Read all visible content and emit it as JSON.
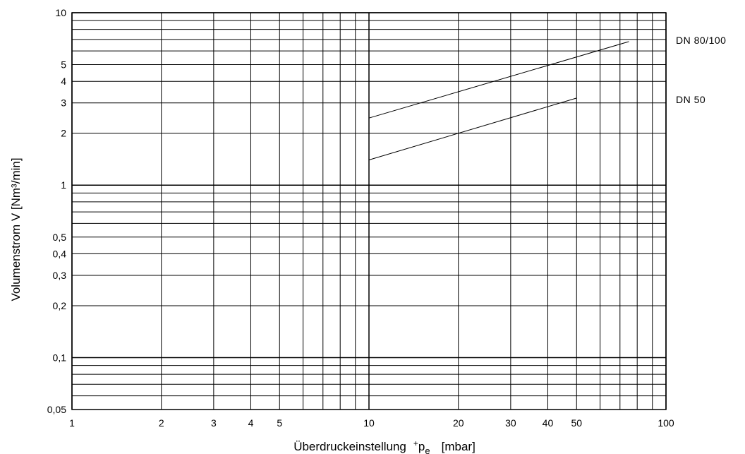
{
  "chart_data": {
    "type": "line",
    "xscale": "log",
    "yscale": "log",
    "xlim": [
      1,
      100
    ],
    "ylim": [
      0.05,
      10
    ],
    "grid": true,
    "xlabel": {
      "main": "Überdruckeinstellung",
      "sup": "+",
      "var": "p",
      "sub": "e",
      "unit": "[mbar]"
    },
    "ylabel": "Volumenstrom  V  [Nm³/min]",
    "x_ticks": [
      {
        "value": 1,
        "label": "1"
      },
      {
        "value": 2,
        "label": "2"
      },
      {
        "value": 3,
        "label": "3"
      },
      {
        "value": 4,
        "label": "4"
      },
      {
        "value": 5,
        "label": "5"
      },
      {
        "value": 10,
        "label": "10"
      },
      {
        "value": 20,
        "label": "20"
      },
      {
        "value": 30,
        "label": "30"
      },
      {
        "value": 40,
        "label": "40"
      },
      {
        "value": 50,
        "label": "50"
      },
      {
        "value": 100,
        "label": "100"
      }
    ],
    "y_ticks": [
      {
        "value": 0.05,
        "label": "0,05"
      },
      {
        "value": 0.1,
        "label": "0,1"
      },
      {
        "value": 0.2,
        "label": "0,2"
      },
      {
        "value": 0.3,
        "label": "0,3"
      },
      {
        "value": 0.4,
        "label": "0,4"
      },
      {
        "value": 0.5,
        "label": "0,5"
      },
      {
        "value": 1,
        "label": "1"
      },
      {
        "value": 2,
        "label": "2"
      },
      {
        "value": 3,
        "label": "3"
      },
      {
        "value": 4,
        "label": "4"
      },
      {
        "value": 5,
        "label": "5"
      },
      {
        "value": 10,
        "label": "10"
      }
    ],
    "series": [
      {
        "name": "DN 80/100",
        "x": [
          10,
          75
        ],
        "y": [
          2.45,
          6.8
        ]
      },
      {
        "name": "DN 50",
        "x": [
          10,
          50
        ],
        "y": [
          1.4,
          3.2
        ]
      }
    ]
  }
}
